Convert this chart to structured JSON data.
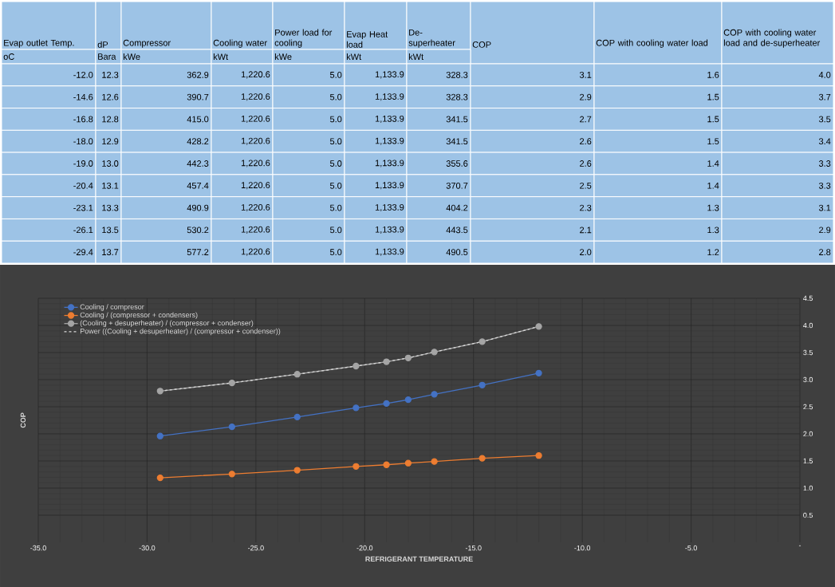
{
  "chart_data": [
    {
      "type": "other",
      "categories": [
        "Evap outlet Temp.",
        "dP",
        "Compressor",
        "Cooling water",
        "Power load for cooling",
        "Evap Heat load",
        "De-superheater",
        "COP",
        "COP with cooling water load",
        "COP with cooling water load and de-superheater"
      ],
      "annotations": [
        "oC",
        "Bara",
        "kWe",
        "kWt",
        "kWe",
        "kWt",
        "kWt",
        null,
        null,
        null,
        "-12.0",
        "12.3",
        "362.9",
        "1,220.6",
        "5.0",
        "1,133.9",
        "328.3",
        "3.1",
        "1.6",
        "4.0",
        "-14.6",
        "12.6",
        "390.7",
        "1,220.6",
        "5.0",
        "1,133.9",
        "328.3",
        "2.9",
        "1.5",
        "3.7",
        "-16.8",
        "12.8",
        "415.0",
        "1,220.6",
        "5.0",
        "1,133.9",
        "341.5",
        "2.7",
        "1.5",
        "3.5",
        "-18.0",
        "12.9",
        "428.2",
        "1,220.6",
        "5.0",
        "1,133.9",
        "341.5",
        "2.6",
        "1.5",
        "3.4",
        "-19.0",
        "13.0",
        "442.3",
        "1,220.6",
        "5.0",
        "1,133.9",
        "355.6",
        "2.6",
        "1.4",
        "3.3",
        "-20.4",
        "13.1",
        "457.4",
        "1,220.6",
        "5.0",
        "1,133.9",
        "370.7",
        "2.5",
        "1.4",
        "3.3",
        "-23.1",
        "13.3",
        "490.9",
        "1,220.6",
        "5.0",
        "1,133.9",
        "404.2",
        "2.3",
        "1.3",
        "3.1",
        "-26.1",
        "13.5",
        "530.2",
        "1,220.6",
        "5.0",
        "1,133.9",
        "443.5",
        "2.1",
        "1.3",
        "2.9",
        "-29.4",
        "13.7",
        "577.2",
        "1,220.6",
        "5.0",
        "1,133.9",
        "490.5",
        "2.0",
        "1.2",
        "2.8"
      ]
    },
    {
      "type": "line",
      "xlabel": "REFRIGERANT TEMPERATURE",
      "ylabel": "COP",
      "x": [
        -29.4,
        -26.1,
        -23.1,
        -20.4,
        -19.0,
        -18.0,
        -16.8,
        -14.6,
        -12.0
      ],
      "series": [
        {
          "name": "Cooling / compresor",
          "color": "#4472c4",
          "values": [
            1.96,
            2.13,
            2.31,
            2.48,
            2.56,
            2.63,
            2.73,
            2.9,
            3.12
          ]
        },
        {
          "name": "Cooling / (compressor + condensers)",
          "color": "#ed7d31",
          "values": [
            1.19,
            1.26,
            1.33,
            1.4,
            1.43,
            1.46,
            1.49,
            1.55,
            1.6
          ]
        },
        {
          "name": "(Cooling + desuperheater) / (compressor + condenser)",
          "color": "#a5a5a5",
          "values": [
            2.79,
            2.94,
            3.1,
            3.25,
            3.33,
            3.4,
            3.51,
            3.7,
            3.98
          ]
        },
        {
          "name": "Power ((Cooling + desuperheater) / (compressor + condenser))",
          "color": "#d9d9d9",
          "line_style": "dashed",
          "marker": "none",
          "values": [
            2.79,
            2.94,
            3.1,
            3.25,
            3.33,
            3.4,
            3.51,
            3.7,
            3.98
          ]
        }
      ],
      "xlim": [
        -35,
        0
      ],
      "xticks": [
        {
          "value": -35,
          "label": "-35.0"
        },
        {
          "value": -30,
          "label": "-30.0"
        },
        {
          "value": -25,
          "label": "-25.0"
        },
        {
          "value": -20,
          "label": "-20.0"
        },
        {
          "value": -15,
          "label": "-15.0"
        },
        {
          "value": -10,
          "label": "-10.0"
        },
        {
          "value": -5,
          "label": "-5.0"
        },
        {
          "value": 0,
          "label": "-"
        }
      ],
      "ylim": [
        0,
        4.5
      ],
      "yticks": [
        {
          "value": 0.5,
          "label": "0.5"
        },
        {
          "value": 1.0,
          "label": "1.0"
        },
        {
          "value": 1.5,
          "label": "1.5"
        },
        {
          "value": 2.0,
          "label": "2.0"
        },
        {
          "value": 2.5,
          "label": "2.5"
        },
        {
          "value": 3.0,
          "label": "3.0"
        },
        {
          "value": 3.5,
          "label": "3.5"
        },
        {
          "value": 4.0,
          "label": "4.0"
        },
        {
          "value": 4.5,
          "label": "4.5"
        }
      ],
      "grid": true,
      "legend": "top left",
      "marker": "circle"
    }
  ]
}
